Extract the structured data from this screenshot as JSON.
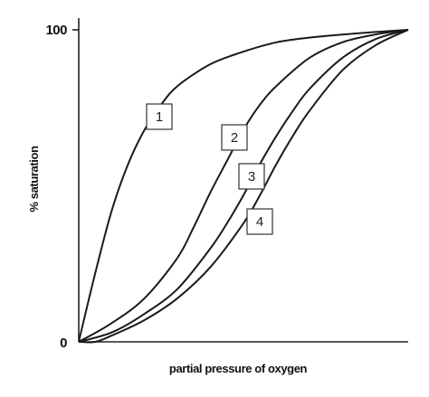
{
  "chart_data": {
    "type": "line",
    "xlabel": "partial pressure of oxygen",
    "ylabel": "% saturation",
    "ylim": [
      0,
      100
    ],
    "y_ticks": [
      "0",
      "100"
    ],
    "grid": false,
    "legend": "none",
    "series": [
      {
        "name": "1",
        "x": [
          0,
          0.05,
          0.1,
          0.15,
          0.2,
          0.25,
          0.3,
          0.4,
          0.5,
          0.6,
          0.7,
          0.8,
          0.9,
          1.0
        ],
        "values": [
          0,
          22,
          42,
          57,
          68,
          76,
          82,
          89,
          93,
          96,
          97.5,
          98.5,
          99.3,
          100
        ]
      },
      {
        "name": "2",
        "x": [
          0,
          0.1,
          0.2,
          0.3,
          0.35,
          0.4,
          0.45,
          0.5,
          0.55,
          0.6,
          0.7,
          0.8,
          0.9,
          1.0
        ],
        "values": [
          0,
          6,
          14,
          27,
          37,
          48,
          58,
          68,
          76,
          82,
          91,
          96,
          98.5,
          100
        ]
      },
      {
        "name": "3",
        "x": [
          0,
          0.1,
          0.2,
          0.3,
          0.4,
          0.45,
          0.5,
          0.55,
          0.6,
          0.65,
          0.7,
          0.8,
          0.9,
          1.0
        ],
        "values": [
          0,
          3,
          9,
          17,
          30,
          38,
          47,
          57,
          66,
          74,
          81,
          91,
          97,
          100
        ]
      },
      {
        "name": "4",
        "x": [
          0,
          0.05,
          0.1,
          0.2,
          0.3,
          0.4,
          0.5,
          0.55,
          0.6,
          0.65,
          0.7,
          0.8,
          0.9,
          1.0
        ],
        "values": [
          0,
          0,
          2,
          7,
          14,
          24,
          38,
          47,
          57,
          66,
          74,
          87,
          95,
          100
        ]
      }
    ],
    "curve_labels": [
      "1",
      "2",
      "3",
      "4"
    ]
  }
}
